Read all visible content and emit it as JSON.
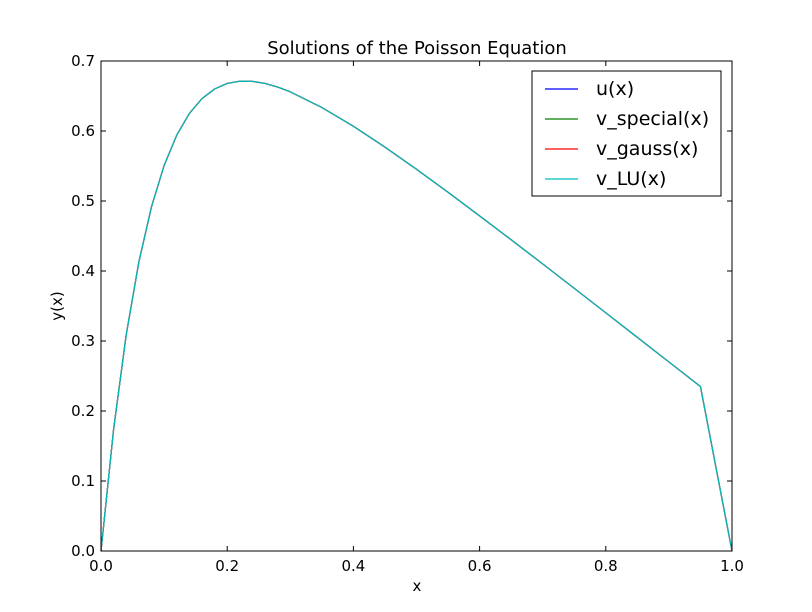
{
  "chart_data": {
    "type": "line",
    "title": "Solutions of the Poisson Equation",
    "xlabel": "x",
    "ylabel": "y(x)",
    "xlim": [
      0.0,
      1.0
    ],
    "ylim": [
      0.0,
      0.7
    ],
    "xticks": [
      "0.0",
      "0.2",
      "0.4",
      "0.6",
      "0.8",
      "1.0"
    ],
    "yticks": [
      "0.0",
      "0.1",
      "0.2",
      "0.3",
      "0.4",
      "0.5",
      "0.6",
      "0.7"
    ],
    "grid": false,
    "legend_position": "top-right",
    "x": [
      0.0,
      0.02,
      0.04,
      0.06,
      0.08,
      0.1,
      0.12,
      0.14,
      0.16,
      0.18,
      0.2,
      0.22,
      0.24,
      0.26,
      0.28,
      0.3,
      0.35,
      0.4,
      0.45,
      0.5,
      0.55,
      0.6,
      0.65,
      0.7,
      0.75,
      0.8,
      0.85,
      0.9,
      0.95,
      1.0
    ],
    "series": [
      {
        "name": "u(x)",
        "color": "#0000ff",
        "values": [
          0.0,
          0.1741,
          0.3091,
          0.4128,
          0.4917,
          0.5507,
          0.594,
          0.625,
          0.6463,
          0.66,
          0.6679,
          0.6712,
          0.6709,
          0.6679,
          0.6627,
          0.6559,
          0.6336,
          0.6068,
          0.577,
          0.5454,
          0.5125,
          0.4788,
          0.4446,
          0.4101,
          0.3753,
          0.3403,
          0.3052,
          0.2701,
          0.235,
          0.0
        ]
      },
      {
        "name": "v_special(x)",
        "color": "#008000",
        "values": [
          0.0,
          0.1741,
          0.3091,
          0.4128,
          0.4917,
          0.5507,
          0.594,
          0.625,
          0.6463,
          0.66,
          0.6679,
          0.6712,
          0.6709,
          0.6679,
          0.6627,
          0.6559,
          0.6336,
          0.6068,
          0.577,
          0.5454,
          0.5125,
          0.4788,
          0.4446,
          0.4101,
          0.3753,
          0.3403,
          0.3052,
          0.2701,
          0.235,
          0.0
        ]
      },
      {
        "name": "v_gauss(x)",
        "color": "#ff0000",
        "values": [
          0.0,
          0.1741,
          0.3091,
          0.4128,
          0.4917,
          0.5507,
          0.594,
          0.625,
          0.6463,
          0.66,
          0.6679,
          0.6712,
          0.6709,
          0.6679,
          0.6627,
          0.6559,
          0.6336,
          0.6068,
          0.577,
          0.5454,
          0.5125,
          0.4788,
          0.4446,
          0.4101,
          0.3753,
          0.3403,
          0.3052,
          0.2701,
          0.235,
          0.0
        ]
      },
      {
        "name": "v_LU(x)",
        "color": "#00bfbf",
        "values": [
          0.0,
          0.1741,
          0.3091,
          0.4128,
          0.4917,
          0.5507,
          0.594,
          0.625,
          0.6463,
          0.66,
          0.6679,
          0.6712,
          0.6709,
          0.6679,
          0.6627,
          0.6559,
          0.6336,
          0.6068,
          0.577,
          0.5454,
          0.5125,
          0.4788,
          0.4446,
          0.4101,
          0.3753,
          0.3403,
          0.3052,
          0.2701,
          0.235,
          0.0
        ]
      }
    ]
  }
}
